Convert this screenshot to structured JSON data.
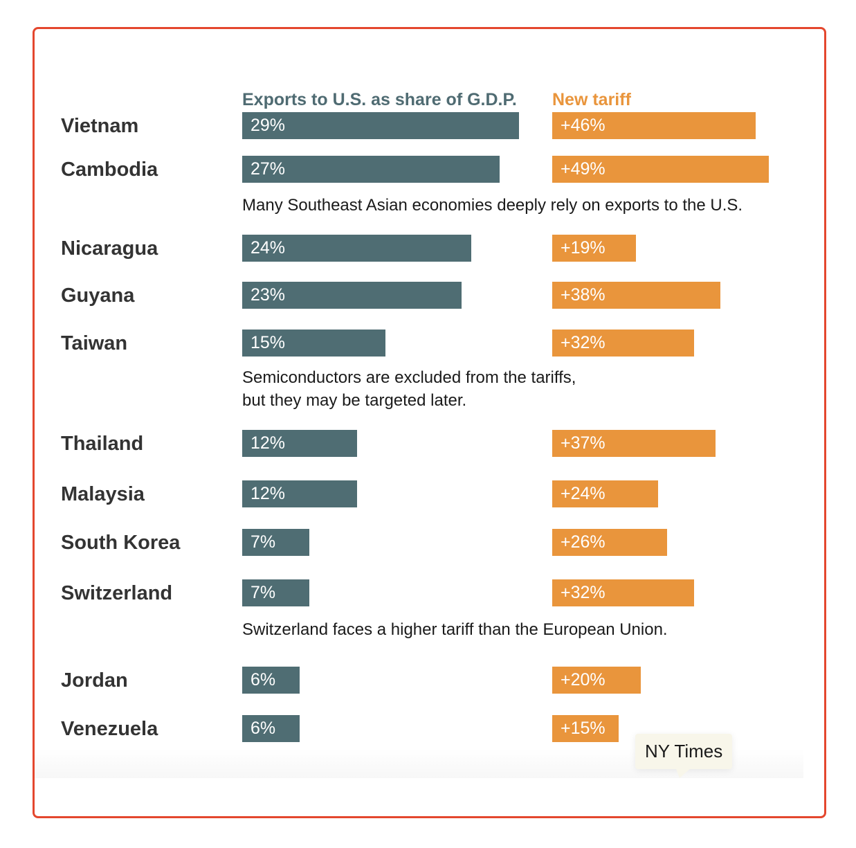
{
  "chart_data": {
    "type": "bar",
    "layout": "paired-horizontal",
    "series": [
      {
        "name": "Exports to U.S. as share of G.D.P.",
        "color": "#4f6d73",
        "values": [
          29,
          27,
          24,
          23,
          15,
          12,
          12,
          7,
          7,
          6,
          6
        ],
        "labels": [
          "29%",
          "27%",
          "24%",
          "23%",
          "15%",
          "12%",
          "12%",
          "7%",
          "7%",
          "6%",
          "6%"
        ]
      },
      {
        "name": "New tariff",
        "color": "#e9953c",
        "values": [
          46,
          49,
          19,
          38,
          32,
          37,
          24,
          26,
          32,
          20,
          15
        ],
        "labels": [
          "+46%",
          "+49%",
          "+19%",
          "+38%",
          "+32%",
          "+37%",
          "+24%",
          "+26%",
          "+32%",
          "+20%",
          "+15%"
        ]
      }
    ],
    "categories": [
      "Vietnam",
      "Cambodia",
      "Nicaragua",
      "Guyana",
      "Taiwan",
      "Thailand",
      "Malaysia",
      "South Korea",
      "Switzerland",
      "Jordan",
      "Venezuela"
    ],
    "annotations": [
      {
        "after": "Cambodia",
        "lines": [
          "Many Southeast Asian economies deeply rely on exports to the U.S."
        ]
      },
      {
        "after": "Taiwan",
        "lines": [
          "Semiconductors are excluded from the tariffs,",
          "but they may be targeted later."
        ]
      },
      {
        "after": "Switzerland",
        "lines": [
          "Switzerland faces a higher tariff than the European Union."
        ]
      }
    ]
  },
  "tooltip": {
    "text": "NY Times"
  },
  "colors": {
    "border": "#e4472e",
    "exports": "#4f6d73",
    "tariff": "#e9953c"
  }
}
